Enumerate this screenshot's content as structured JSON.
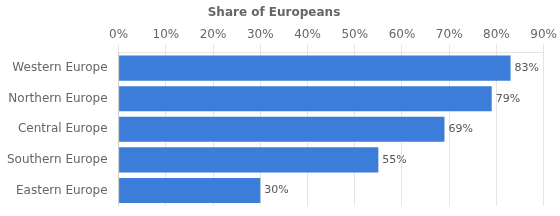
{
  "chart_data": {
    "type": "bar",
    "orientation": "horizontal",
    "title": "Share of Europeans",
    "categories": [
      "Western Europe",
      "Northern Europe",
      "Central Europe",
      "Southern Europe",
      "Eastern Europe"
    ],
    "values": [
      83,
      79,
      69,
      55,
      30
    ],
    "value_labels": [
      "83%",
      "79%",
      "69%",
      "55%",
      "30%"
    ],
    "data_labels": true,
    "color": "#3b7dd8",
    "xlim": [
      0,
      90
    ],
    "xticks": [
      {
        "value": 0,
        "label": "0%"
      },
      {
        "value": 10,
        "label": "10%"
      },
      {
        "value": 20,
        "label": "20%"
      },
      {
        "value": 30,
        "label": "30%"
      },
      {
        "value": 40,
        "label": "40%"
      },
      {
        "value": 50,
        "label": "50%"
      },
      {
        "value": 60,
        "label": "60%"
      },
      {
        "value": 70,
        "label": "70%"
      },
      {
        "value": 80,
        "label": "80%"
      },
      {
        "value": 90,
        "label": "90%"
      }
    ],
    "grid": true
  }
}
